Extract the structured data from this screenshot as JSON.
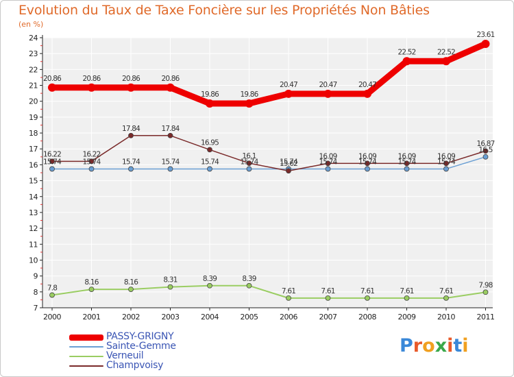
{
  "title": "Evolution du Taux de Taxe Foncière sur les Propriétés Non Bâties",
  "subtitle": "(en %)",
  "logo": {
    "text": "Proxiti",
    "colors": [
      "#3a88d8",
      "#e85a2a",
      "#f0a020",
      "#3aa84a",
      "#e85a2a",
      "#3a88d8",
      "#f0a020"
    ]
  },
  "chart_data": {
    "type": "line",
    "x": [
      "2000",
      "2001",
      "2002",
      "2003",
      "2004",
      "2005",
      "2006",
      "2007",
      "2008",
      "2009",
      "2010",
      "2011"
    ],
    "ylim": [
      7,
      24
    ],
    "yticks": [
      "7",
      "8",
      "9",
      "10",
      "11",
      "12",
      "13",
      "14",
      "15",
      "16",
      "17",
      "18",
      "19",
      "20",
      "21",
      "22",
      "23",
      "24"
    ],
    "grid": true,
    "legend_position": "bottom-left",
    "series": [
      {
        "name": "PASSY-GRIGNY",
        "color": "#ee0000",
        "values": [
          20.86,
          20.86,
          20.86,
          20.86,
          19.86,
          19.86,
          20.47,
          20.47,
          20.47,
          22.52,
          22.52,
          23.61
        ],
        "labels": [
          "20.86",
          "20.86",
          "20.86",
          "20.86",
          "19.86",
          "19.86",
          "20.47",
          "20.47",
          "20.47",
          "22.52",
          "22.52",
          "23.61"
        ]
      },
      {
        "name": "Sainte-Gemme",
        "color": "#6a9fd4",
        "values": [
          15.74,
          15.74,
          15.74,
          15.74,
          15.74,
          15.74,
          15.74,
          15.74,
          15.74,
          15.74,
          15.74,
          16.5
        ],
        "labels": [
          "15.74",
          "15.74",
          "15.74",
          "15.74",
          "15.74",
          "15.74",
          "15.74",
          "15.74",
          "15.74",
          "15.74",
          "15.74",
          "16.5"
        ]
      },
      {
        "name": "Verneuil",
        "color": "#9acd62",
        "values": [
          7.8,
          8.16,
          8.16,
          8.31,
          8.39,
          8.39,
          7.61,
          7.61,
          7.61,
          7.61,
          7.61,
          7.98
        ],
        "labels": [
          "7.8",
          "8.16",
          "8.16",
          "8.31",
          "8.39",
          "8.39",
          "7.61",
          "7.61",
          "7.61",
          "7.61",
          "7.61",
          "7.98"
        ]
      },
      {
        "name": "Champvoisy",
        "color": "#7a2a2a",
        "values": [
          16.22,
          16.22,
          17.84,
          17.84,
          16.95,
          16.1,
          15.62,
          16.09,
          16.09,
          16.09,
          16.09,
          16.87
        ],
        "labels": [
          "16.22",
          "16.22",
          "17.84",
          "17.84",
          "16.95",
          "16.1",
          "15.62",
          "16.09",
          "16.09",
          "16.09",
          "16.09",
          "16.87"
        ]
      }
    ]
  }
}
